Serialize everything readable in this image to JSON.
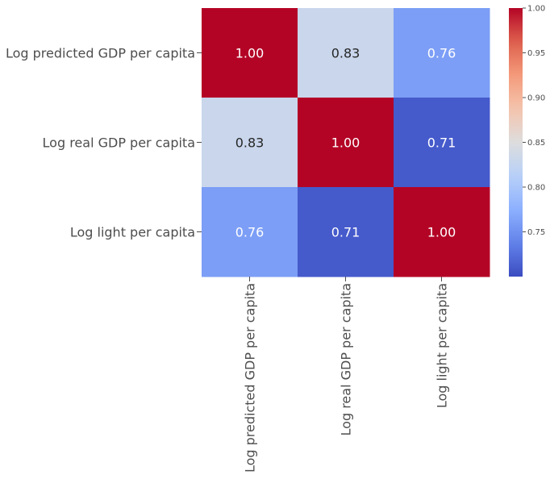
{
  "chart_data": {
    "type": "heatmap",
    "title": "",
    "xlabel": "",
    "ylabel": "",
    "row_labels": [
      "Log predicted GDP per capita",
      "Log real GDP per capita",
      "Log light per capita"
    ],
    "col_labels": [
      "Log predicted GDP per capita",
      "Log real GDP per capita",
      "Log light per capita"
    ],
    "values": [
      [
        1.0,
        0.83,
        0.76
      ],
      [
        0.83,
        1.0,
        0.71
      ],
      [
        0.76,
        0.71,
        1.0
      ]
    ],
    "annotations": [
      [
        "1.00",
        "0.83",
        "0.76"
      ],
      [
        "0.83",
        "1.00",
        "0.71"
      ],
      [
        "0.76",
        "0.71",
        "1.00"
      ]
    ],
    "colormap": "coolwarm",
    "vmin": 0.7,
    "vmax": 1.0,
    "colorbar_ticks": [
      1.0,
      0.95,
      0.9,
      0.85,
      0.8,
      0.75
    ],
    "colorbar_tick_labels": [
      "1.00",
      "0.95",
      "0.90",
      "0.85",
      "0.80",
      "0.75"
    ],
    "colors": {
      "low": "#3b4cc0",
      "mid": "#dddddd",
      "high": "#b40426"
    }
  }
}
